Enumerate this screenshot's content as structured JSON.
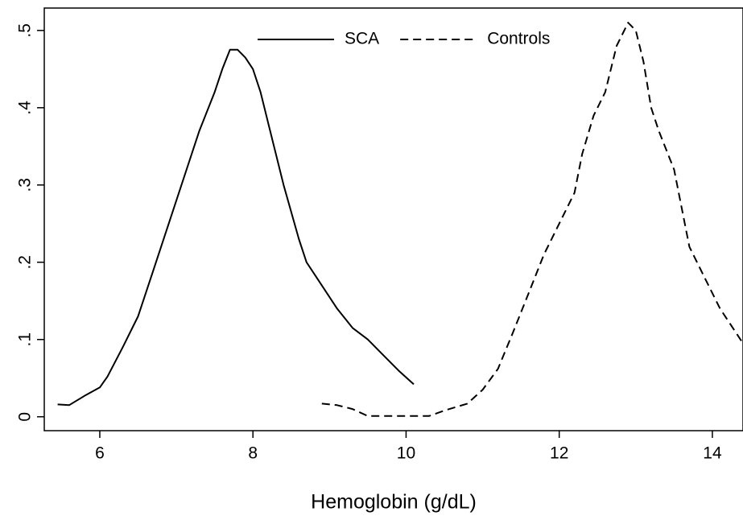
{
  "chart_data": {
    "type": "line",
    "x_label": "Hemoglobin (g/dL)",
    "xlim": [
      5.275,
      14.4
    ],
    "xticks": [
      6,
      8,
      10,
      12,
      14
    ],
    "ylim": [
      -0.018,
      0.529
    ],
    "yticks": [
      0,
      {
        "value": 0.1,
        "label": ".1"
      },
      {
        "value": 0.2,
        "label": ".2"
      },
      {
        "value": 0.3,
        "label": ".3"
      },
      {
        "value": 0.4,
        "label": ".4"
      },
      {
        "value": 0.5,
        "label": ".5"
      }
    ],
    "legend": "top",
    "series": [
      {
        "name": "SCA",
        "color": "#000000",
        "dash": "solid",
        "x": [
          5.45,
          5.6,
          5.8,
          6.0,
          6.1,
          6.3,
          6.5,
          6.7,
          6.9,
          7.1,
          7.3,
          7.5,
          7.6,
          7.7,
          7.8,
          7.9,
          8.0,
          8.1,
          8.2,
          8.4,
          8.6,
          8.7,
          8.9,
          9.1,
          9.3,
          9.5,
          9.7,
          9.9,
          10.1
        ],
        "values": [
          0.016,
          0.015,
          0.027,
          0.038,
          0.052,
          0.09,
          0.13,
          0.19,
          0.25,
          0.31,
          0.37,
          0.42,
          0.45,
          0.475,
          0.475,
          0.465,
          0.45,
          0.42,
          0.38,
          0.3,
          0.23,
          0.2,
          0.17,
          0.14,
          0.115,
          0.1,
          0.08,
          0.06,
          0.042
        ]
      },
      {
        "name": "Controls",
        "color": "#000000",
        "dash": "dashed",
        "x": [
          8.9,
          9.1,
          9.3,
          9.5,
          9.7,
          10.0,
          10.3,
          10.5,
          10.8,
          11.0,
          11.2,
          11.4,
          11.6,
          11.8,
          12.0,
          12.2,
          12.3,
          12.45,
          12.6,
          12.75,
          12.9,
          13.0,
          13.1,
          13.2,
          13.3,
          13.5,
          13.7,
          13.9,
          14.1,
          14.3,
          14.4
        ],
        "values": [
          0.017,
          0.015,
          0.01,
          0.001,
          0.001,
          0.001,
          0.001,
          0.008,
          0.017,
          0.035,
          0.062,
          0.11,
          0.16,
          0.21,
          0.25,
          0.29,
          0.34,
          0.39,
          0.42,
          0.48,
          0.51,
          0.5,
          0.46,
          0.4,
          0.37,
          0.32,
          0.22,
          0.18,
          0.14,
          0.11,
          0.095
        ]
      }
    ]
  }
}
